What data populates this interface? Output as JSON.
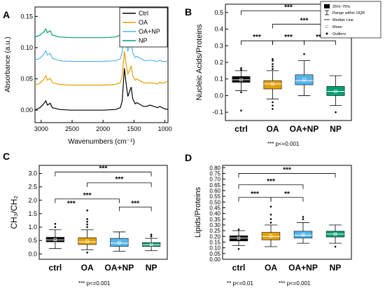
{
  "colors": {
    "ctrl": "#000000",
    "oa": "#E69F00",
    "oa_np": "#56B4E9",
    "np": "#009E73"
  },
  "chart_data": [
    {
      "panel": "A",
      "type": "line",
      "xlabel": "Wavenumbers (cm⁻¹)",
      "ylabel": "Absorbance (a.u.)",
      "xlim": [
        3100,
        950
      ],
      "ylim": [
        -0.02,
        0.165
      ],
      "xticks": [
        "3000",
        "2500",
        "2000",
        "1500",
        "1000"
      ],
      "yticks": [
        "0.00",
        "0.05",
        "0.10",
        "0.15"
      ],
      "legend_position": "top-right",
      "series": [
        {
          "name": "Ctrl",
          "color_key": "ctrl",
          "x": [
            3100,
            3020,
            2960,
            2925,
            2900,
            2855,
            2820,
            2700,
            2500,
            2300,
            2000,
            1800,
            1720,
            1690,
            1655,
            1630,
            1600,
            1570,
            1545,
            1520,
            1480,
            1455,
            1400,
            1350,
            1300,
            1240,
            1180,
            1120,
            1080,
            1050,
            1000,
            950
          ],
          "y": [
            0.0,
            0.004,
            0.01,
            0.015,
            0.008,
            0.011,
            0.004,
            0.001,
            0.0,
            0.0,
            0.0,
            0.001,
            0.004,
            0.015,
            0.067,
            0.045,
            0.022,
            0.03,
            0.037,
            0.018,
            0.01,
            0.012,
            0.009,
            0.006,
            0.006,
            0.008,
            0.006,
            0.004,
            0.006,
            0.004,
            0.002,
            0.001
          ]
        },
        {
          "name": "OA",
          "color_key": "oa",
          "x": [
            3100,
            3020,
            2960,
            2925,
            2900,
            2855,
            2820,
            2700,
            2500,
            2300,
            2000,
            1800,
            1720,
            1690,
            1655,
            1630,
            1600,
            1570,
            1545,
            1520,
            1480,
            1455,
            1400,
            1350,
            1300,
            1240,
            1180,
            1120,
            1080,
            1050,
            1000,
            950
          ],
          "y": [
            0.04,
            0.043,
            0.049,
            0.055,
            0.048,
            0.051,
            0.044,
            0.041,
            0.04,
            0.04,
            0.04,
            0.041,
            0.044,
            0.055,
            0.094,
            0.075,
            0.058,
            0.064,
            0.071,
            0.055,
            0.048,
            0.05,
            0.047,
            0.044,
            0.043,
            0.044,
            0.043,
            0.042,
            0.045,
            0.043,
            0.044,
            0.047
          ]
        },
        {
          "name": "OA+NP",
          "color_key": "oa_np",
          "x": [
            3100,
            3020,
            2960,
            2925,
            2900,
            2855,
            2820,
            2700,
            2500,
            2300,
            2000,
            1800,
            1720,
            1690,
            1655,
            1630,
            1600,
            1570,
            1545,
            1520,
            1480,
            1455,
            1400,
            1350,
            1300,
            1240,
            1180,
            1120,
            1080,
            1050,
            1000,
            950
          ],
          "y": [
            0.08,
            0.083,
            0.089,
            0.095,
            0.088,
            0.091,
            0.083,
            0.079,
            0.078,
            0.078,
            0.078,
            0.079,
            0.082,
            0.094,
            0.13,
            0.11,
            0.094,
            0.103,
            0.108,
            0.092,
            0.084,
            0.086,
            0.083,
            0.08,
            0.079,
            0.08,
            0.079,
            0.078,
            0.08,
            0.078,
            0.078,
            0.078
          ]
        },
        {
          "name": "NP",
          "color_key": "np",
          "x": [
            3100,
            3020,
            2960,
            2925,
            2900,
            2855,
            2820,
            2700,
            2500,
            2300,
            2000,
            1800,
            1720,
            1690,
            1655,
            1630,
            1600,
            1570,
            1545,
            1520,
            1480,
            1455,
            1400,
            1350,
            1300,
            1240,
            1180,
            1120,
            1080,
            1050,
            1000,
            950
          ],
          "y": [
            0.117,
            0.12,
            0.125,
            0.13,
            0.124,
            0.127,
            0.12,
            0.117,
            0.116,
            0.116,
            0.116,
            0.117,
            0.12,
            0.13,
            0.15,
            0.14,
            0.128,
            0.134,
            0.139,
            0.127,
            0.121,
            0.123,
            0.12,
            0.118,
            0.117,
            0.118,
            0.117,
            0.116,
            0.118,
            0.116,
            0.117,
            0.117
          ]
        }
      ]
    },
    {
      "panel": "B",
      "type": "box",
      "ylabel": "Nucleic Acids/Proteins",
      "ylim": [
        -0.15,
        0.55
      ],
      "yticks": [
        "-0.1",
        "0.0",
        "0.1",
        "0.2",
        "0.3",
        "0.4",
        "0.5"
      ],
      "categories": [
        "ctrl",
        "OA",
        "OA+NP",
        "NP"
      ],
      "boxes": [
        {
          "q1": 0.08,
          "median": 0.095,
          "q3": 0.115,
          "mean": 0.095,
          "whisker_low": 0.03,
          "whisker_high": 0.15,
          "outliers": [
            0.165,
            0.155,
            0.02,
            -0.09
          ]
        },
        {
          "q1": 0.04,
          "median": 0.07,
          "q3": 0.09,
          "mean": 0.07,
          "whisker_low": -0.02,
          "whisker_high": 0.15,
          "outliers": [
            0.16,
            0.175,
            0.19,
            0.21,
            0.22,
            -0.04,
            -0.06,
            -0.08
          ]
        },
        {
          "q1": 0.065,
          "median": 0.09,
          "q3": 0.125,
          "mean": 0.095,
          "whisker_low": 0.0,
          "whisker_high": 0.21,
          "outliers": [
            0.25
          ]
        },
        {
          "q1": 0.0,
          "median": 0.025,
          "q3": 0.055,
          "mean": 0.025,
          "whisker_low": -0.06,
          "whisker_high": 0.12,
          "outliers": [
            -0.1
          ]
        }
      ],
      "significance": [
        {
          "from": "ctrl",
          "to": "OA",
          "label": "***",
          "y": 0.33
        },
        {
          "from": "OA",
          "to": "OA+NP",
          "label": "***",
          "y": 0.33
        },
        {
          "from": "OA+NP",
          "to": "NP",
          "label": "***",
          "y": 0.33
        },
        {
          "from": "OA",
          "to": "NP",
          "label": "***",
          "y": 0.43
        },
        {
          "from": "ctrl",
          "to": "NP",
          "label": "***",
          "y": 0.51
        }
      ],
      "footnote": "*** p<=0.001",
      "legend": {
        "position": "top-right",
        "items": [
          "25%~75%",
          "Range within 1IQR",
          "Median Line",
          "Mean",
          "Outliers"
        ]
      }
    },
    {
      "panel": "C",
      "type": "box",
      "ylabel": "CH₃/CH₂",
      "ylim": [
        -0.2,
        3.3
      ],
      "yticks": [
        "0.0",
        "0.5",
        "1.0",
        "1.5",
        "2.0",
        "2.5",
        "3.0"
      ],
      "categories": [
        "ctrl",
        "OA",
        "OA+NP",
        "NP"
      ],
      "boxes": [
        {
          "q1": 0.45,
          "median": 0.52,
          "q3": 0.62,
          "mean": 0.53,
          "whisker_low": 0.2,
          "whisker_high": 0.9,
          "outliers": [
            1.0,
            1.12
          ]
        },
        {
          "q1": 0.35,
          "median": 0.45,
          "q3": 0.6,
          "mean": 0.47,
          "whisker_low": 0.15,
          "whisker_high": 0.9,
          "outliers": [
            1.0,
            1.1,
            1.2,
            1.3,
            1.62,
            0.05
          ]
        },
        {
          "q1": 0.28,
          "median": 0.4,
          "q3": 0.58,
          "mean": 0.42,
          "whisker_low": 0.1,
          "whisker_high": 0.82,
          "outliers": []
        },
        {
          "q1": 0.28,
          "median": 0.34,
          "q3": 0.42,
          "mean": 0.35,
          "whisker_low": 0.12,
          "whisker_high": 0.58,
          "outliers": [
            0.65,
            0.72
          ]
        }
      ],
      "significance": [
        {
          "from": "ctrl",
          "to": "OA",
          "label": "***",
          "y": 1.75,
          "style": "label_only"
        },
        {
          "from": "ctrl",
          "to": "OA+NP",
          "label": "***",
          "y": 2.05
        },
        {
          "from": "OA+NP",
          "to": "NP",
          "label": "***",
          "y": 1.75
        },
        {
          "from": "OA",
          "to": "NP",
          "label": "***",
          "y": 2.65
        },
        {
          "from": "ctrl",
          "to": "NP",
          "label": "***",
          "y": 3.05
        }
      ],
      "footnote": "*** p<=0.001"
    },
    {
      "panel": "D",
      "type": "box",
      "ylabel": "Lipids/Proteins",
      "ylim": [
        0.0,
        0.82
      ],
      "yticks": [
        "0.00",
        "0.05",
        "0.10",
        "0.15",
        "0.20",
        "0.25",
        "0.30",
        "0.35",
        "0.40",
        "0.45",
        "0.50",
        "0.55",
        "0.60",
        "0.65",
        "0.70",
        "0.75",
        "0.80"
      ],
      "categories": [
        "ctrl",
        "OA",
        "OA+NP",
        "NP"
      ],
      "boxes": [
        {
          "q1": 0.16,
          "median": 0.185,
          "q3": 0.205,
          "mean": 0.185,
          "whisker_low": 0.12,
          "whisker_high": 0.25,
          "outliers": [
            0.26,
            0.09
          ]
        },
        {
          "q1": 0.17,
          "median": 0.2,
          "q3": 0.235,
          "mean": 0.205,
          "whisker_low": 0.11,
          "whisker_high": 0.3,
          "outliers": [
            0.32,
            0.35,
            0.39,
            0.46
          ]
        },
        {
          "q1": 0.185,
          "median": 0.21,
          "q3": 0.245,
          "mean": 0.215,
          "whisker_low": 0.14,
          "whisker_high": 0.32,
          "outliers": [
            0.35,
            0.37
          ]
        },
        {
          "q1": 0.195,
          "median": 0.22,
          "q3": 0.245,
          "mean": 0.22,
          "whisker_low": 0.14,
          "whisker_high": 0.3,
          "outliers": [
            0.11
          ]
        }
      ],
      "significance": [
        {
          "from": "ctrl",
          "to": "OA",
          "label": "***",
          "y": 0.54
        },
        {
          "from": "OA",
          "to": "OA+NP",
          "label": "**",
          "y": 0.54
        },
        {
          "from": "ctrl",
          "to": "OA+NP",
          "label": "***",
          "y": 0.65
        },
        {
          "from": "ctrl",
          "to": "NP",
          "label": "***",
          "y": 0.75
        }
      ],
      "footnote_left": "** p<=0.01",
      "footnote_right": "*** p<=0.001"
    }
  ],
  "panel_labels": [
    "A",
    "B",
    "C",
    "D"
  ]
}
